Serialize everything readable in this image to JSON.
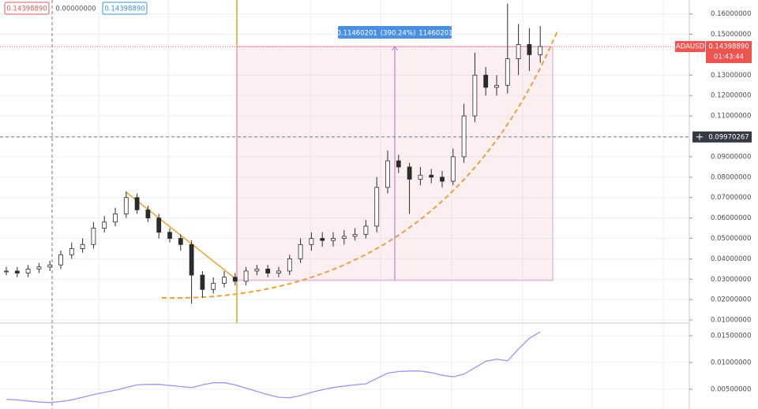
{
  "chart_data": {
    "type": "candlestick",
    "symbol": "ADAUSD",
    "ylim": [
      0.0085,
      0.1668
    ],
    "yticks": [
      {
        "value": 0.16,
        "label": "0.16000000"
      },
      {
        "value": 0.15,
        "label": "0.15000000"
      },
      {
        "value": 0.13,
        "label": "0.13000000"
      },
      {
        "value": 0.12,
        "label": "0.12000000"
      },
      {
        "value": 0.11,
        "label": "0.11000000"
      },
      {
        "value": 0.09,
        "label": "0.09000000"
      },
      {
        "value": 0.08,
        "label": "0.08000000"
      },
      {
        "value": 0.07,
        "label": "0.07000000"
      },
      {
        "value": 0.06,
        "label": "0.06000000"
      },
      {
        "value": 0.05,
        "label": "0.05000000"
      },
      {
        "value": 0.04,
        "label": "0.04000000"
      },
      {
        "value": 0.03,
        "label": "0.03000000"
      },
      {
        "value": 0.02,
        "label": "0.02000000"
      },
      {
        "value": 0.01,
        "label": "0.01000000"
      }
    ],
    "grid": true,
    "candle_color": "#2b2b2b",
    "open": [
      0.034,
      0.034,
      0.033,
      0.035,
      0.036,
      0.037,
      0.042,
      0.045,
      0.047,
      0.055,
      0.058,
      0.062,
      0.07,
      0.064,
      0.06,
      0.053,
      0.05,
      0.047,
      0.032,
      0.025,
      0.028,
      0.031,
      0.029,
      0.034,
      0.035,
      0.033,
      0.034,
      0.04,
      0.047,
      0.05,
      0.049,
      0.05,
      0.051,
      0.052,
      0.056,
      0.075,
      0.088,
      0.085,
      0.079,
      0.081,
      0.08,
      0.078,
      0.09,
      0.11,
      0.13,
      0.124,
      0.125,
      0.138,
      0.145,
      0.14
    ],
    "high": [
      0.036,
      0.036,
      0.037,
      0.038,
      0.039,
      0.044,
      0.048,
      0.05,
      0.058,
      0.061,
      0.065,
      0.073,
      0.072,
      0.066,
      0.062,
      0.055,
      0.052,
      0.049,
      0.034,
      0.031,
      0.034,
      0.033,
      0.036,
      0.037,
      0.037,
      0.036,
      0.042,
      0.05,
      0.053,
      0.053,
      0.053,
      0.054,
      0.055,
      0.059,
      0.08,
      0.093,
      0.091,
      0.087,
      0.085,
      0.084,
      0.083,
      0.094,
      0.116,
      0.141,
      0.134,
      0.13,
      0.165,
      0.155,
      0.153,
      0.154
    ],
    "low": [
      0.032,
      0.031,
      0.031,
      0.033,
      0.034,
      0.035,
      0.04,
      0.043,
      0.045,
      0.053,
      0.056,
      0.06,
      0.062,
      0.058,
      0.05,
      0.048,
      0.044,
      0.018,
      0.021,
      0.023,
      0.026,
      0.027,
      0.027,
      0.032,
      0.031,
      0.031,
      0.032,
      0.038,
      0.044,
      0.046,
      0.046,
      0.047,
      0.049,
      0.05,
      0.053,
      0.072,
      0.082,
      0.062,
      0.076,
      0.077,
      0.075,
      0.076,
      0.087,
      0.107,
      0.12,
      0.12,
      0.121,
      0.13,
      0.132,
      0.136
    ],
    "close": [
      0.034,
      0.033,
      0.035,
      0.036,
      0.037,
      0.042,
      0.045,
      0.047,
      0.055,
      0.058,
      0.062,
      0.07,
      0.064,
      0.06,
      0.053,
      0.05,
      0.047,
      0.032,
      0.025,
      0.028,
      0.031,
      0.029,
      0.034,
      0.035,
      0.033,
      0.034,
      0.04,
      0.047,
      0.05,
      0.049,
      0.05,
      0.051,
      0.052,
      0.056,
      0.075,
      0.088,
      0.085,
      0.079,
      0.081,
      0.08,
      0.078,
      0.09,
      0.11,
      0.13,
      0.124,
      0.125,
      0.138,
      0.145,
      0.14,
      0.144
    ],
    "header_labels": [
      {
        "value": 0.1439889,
        "label": "0.14398890",
        "color": "#e05a5a"
      },
      {
        "value": 0,
        "label": "0.00000000",
        "color": "#555555"
      },
      {
        "value": 0.1439889,
        "label": "0.14398890",
        "color": "#3a8fd8"
      }
    ],
    "last_price": {
      "value": 0.1439889,
      "label": "0.14398890",
      "color": "#ef5350"
    },
    "countdown": "01:43:44",
    "crosshair": {
      "value": 0.09970267,
      "label": "0.09970267"
    },
    "measure": {
      "change": {
        "value": 0.11460201,
        "label": "0.11460201"
      },
      "percent": {
        "value": 390.24,
        "label": "(390.24%)"
      },
      "ticks": 11460201,
      "color": "#4a90e2"
    },
    "indicator": {
      "type": "line",
      "color": "#9d93f0",
      "ylim": [
        0.0013,
        0.0172
      ],
      "yticks": [
        {
          "value": 0.015,
          "label": "0.01500000"
        },
        {
          "value": 0.01,
          "label": "0.01000000"
        },
        {
          "value": 0.005,
          "label": "0.00500000"
        }
      ],
      "values": [
        0.0031,
        0.003,
        0.0028,
        0.0026,
        0.0025,
        0.0027,
        0.003,
        0.0035,
        0.004,
        0.0044,
        0.0048,
        0.0053,
        0.0058,
        0.0059,
        0.0059,
        0.0057,
        0.0055,
        0.0053,
        0.0058,
        0.0062,
        0.0062,
        0.0058,
        0.0052,
        0.0046,
        0.004,
        0.0035,
        0.0034,
        0.0038,
        0.0044,
        0.0049,
        0.0053,
        0.0056,
        0.0058,
        0.006,
        0.007,
        0.008,
        0.0083,
        0.0084,
        0.0084,
        0.0081,
        0.0076,
        0.0073,
        0.0078,
        0.009,
        0.0102,
        0.0106,
        0.0103,
        0.0125,
        0.0145,
        0.0157
      ]
    }
  }
}
